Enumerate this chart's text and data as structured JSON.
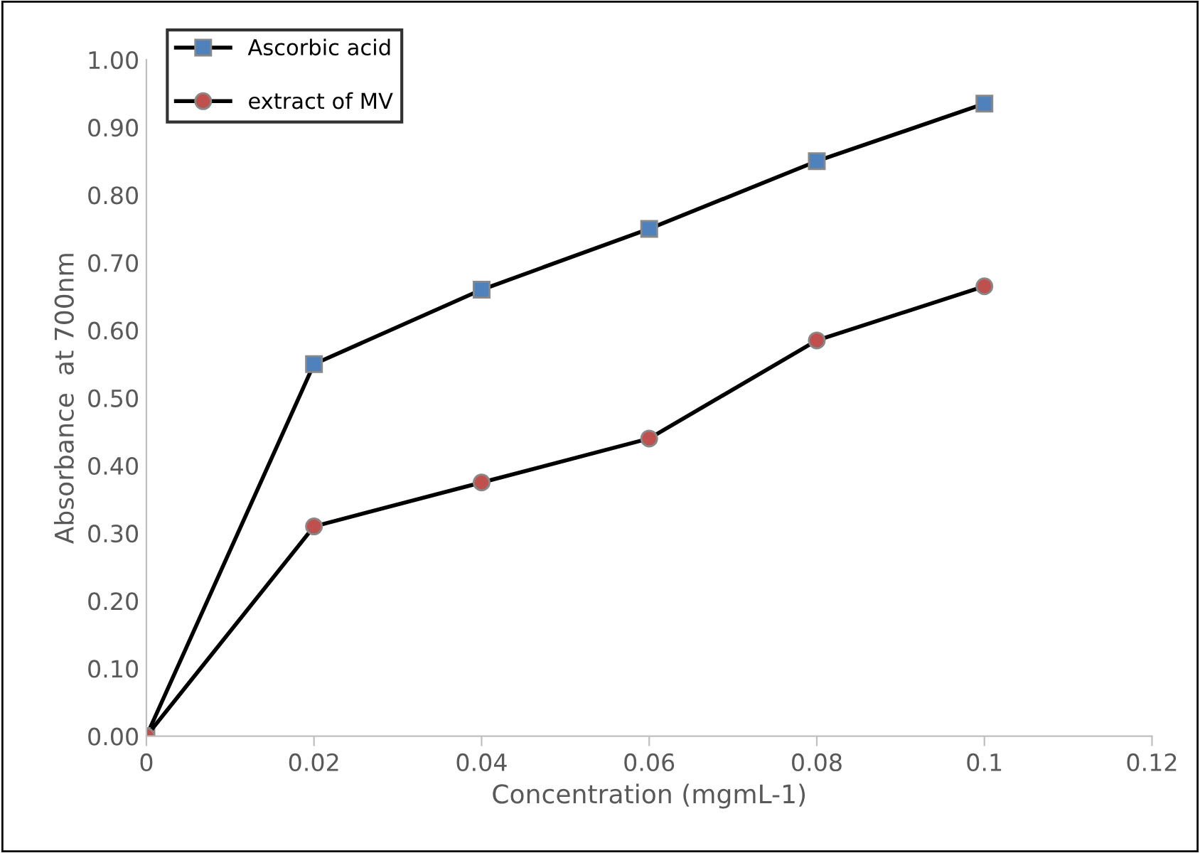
{
  "chart_data": {
    "type": "line",
    "xlabel": "Concentration (mgmL-1)",
    "ylabel": "Absorbance  at 700nm",
    "x": [
      0,
      0.02,
      0.04,
      0.06,
      0.08,
      0.1
    ],
    "series": [
      {
        "name": "Ascorbic acid",
        "color": "#4f81bd",
        "marker": "square",
        "values": [
          0,
          0.55,
          0.66,
          0.75,
          0.85,
          0.935
        ]
      },
      {
        "name": "extract of MV",
        "color": "#c0504d",
        "marker": "circle",
        "values": [
          0,
          0.31,
          0.375,
          0.44,
          0.585,
          0.665
        ]
      }
    ],
    "xlim": [
      0,
      0.12
    ],
    "xticks": [
      0,
      0.02,
      0.04,
      0.06,
      0.08,
      {
        "value": 0.1,
        "label": "0.1"
      },
      0.12
    ],
    "ylim": [
      0,
      1
    ],
    "yticks": [
      {
        "value": 0,
        "label": "0.00"
      },
      {
        "value": 0.1,
        "label": "0.10"
      },
      {
        "value": 0.2,
        "label": "0.20"
      },
      {
        "value": 0.3,
        "label": "0.30"
      },
      {
        "value": 0.4,
        "label": "0.40"
      },
      {
        "value": 0.5,
        "label": "0.50"
      },
      {
        "value": 0.6,
        "label": "0.60"
      },
      {
        "value": 0.7,
        "label": "0.70"
      },
      {
        "value": 0.8,
        "label": "0.80"
      },
      {
        "value": 0.9,
        "label": "0.90"
      },
      {
        "value": 1,
        "label": "1.00"
      }
    ],
    "grid": false,
    "legend": "top left",
    "line_style": "solid"
  }
}
